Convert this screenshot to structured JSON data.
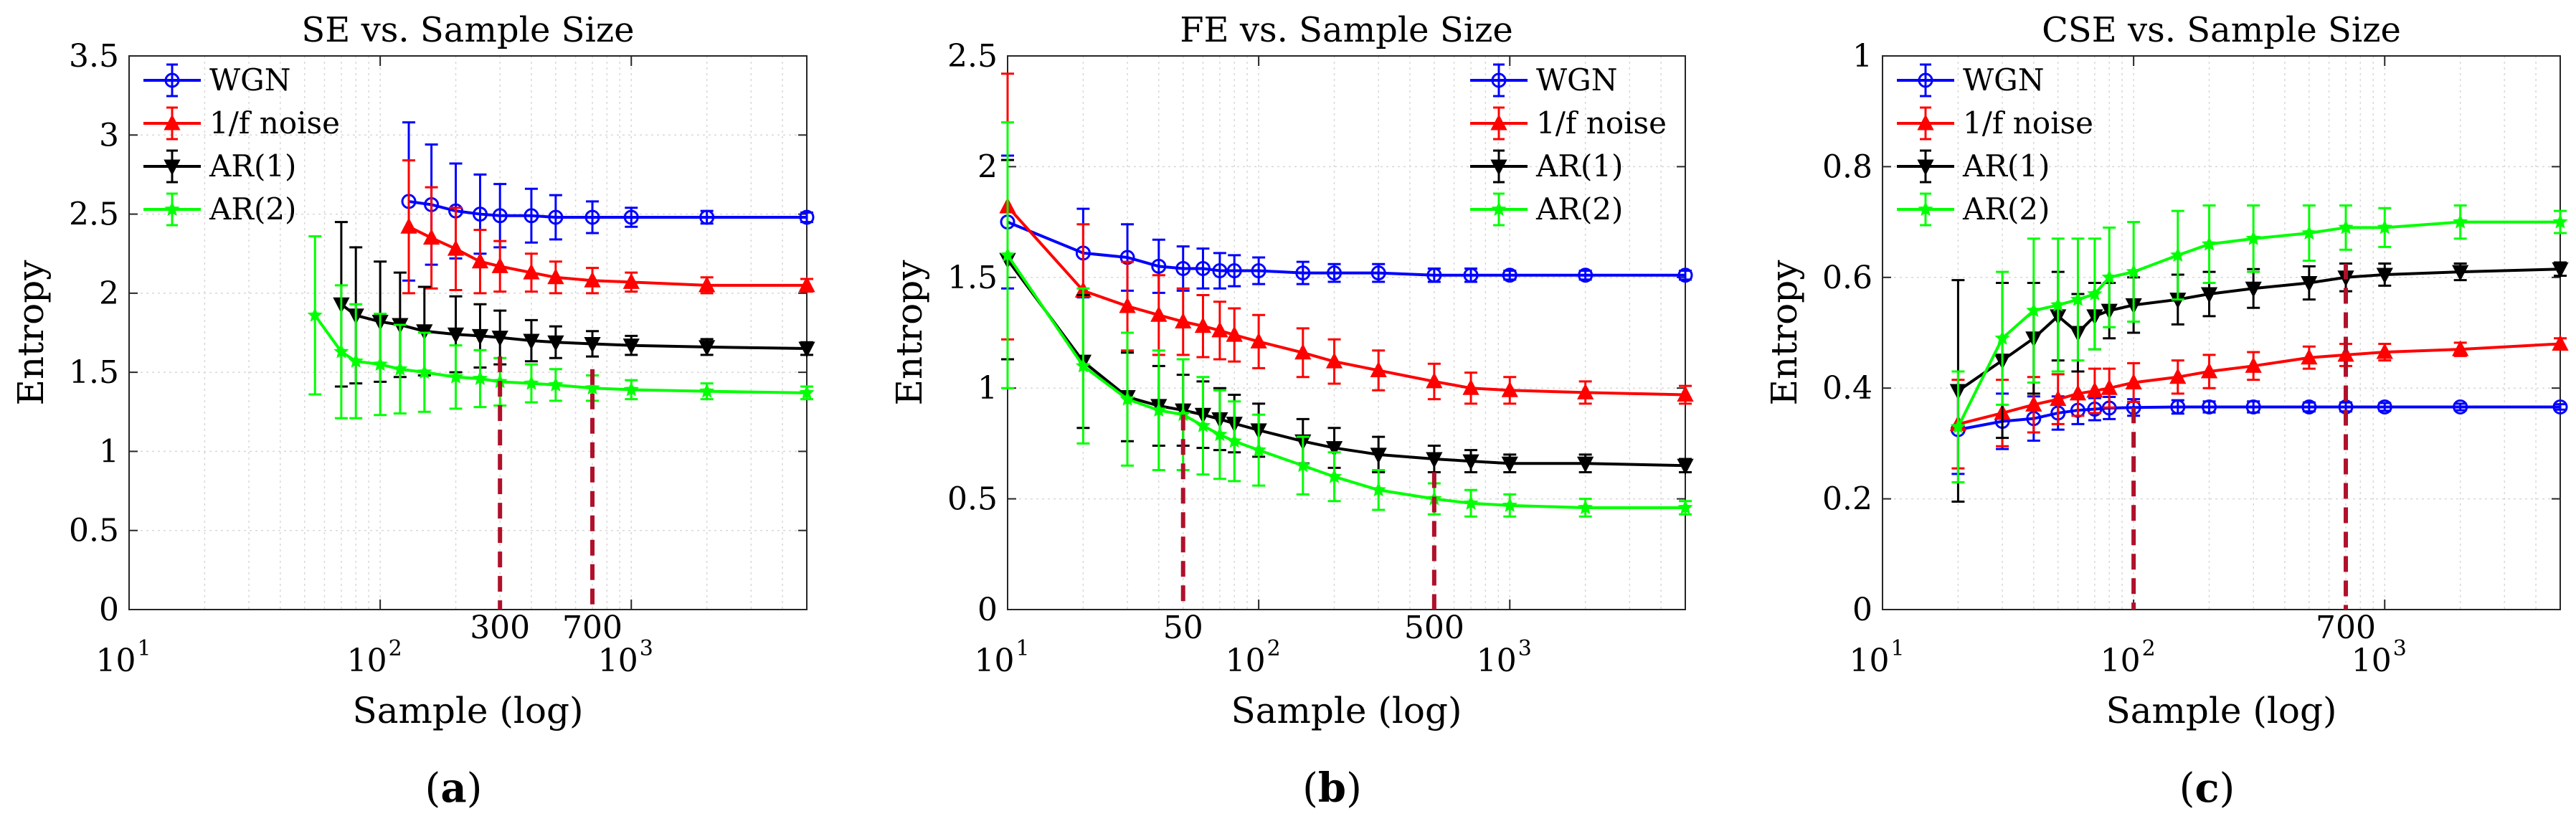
{
  "chart_data": [
    {
      "type": "line",
      "panel": "(a)",
      "caption": {
        "open": "(",
        "letter": "a",
        "close": ")"
      },
      "title": "SE vs. Sample Size",
      "xlabel": "Sample (log)",
      "ylabel": "Entropy",
      "xscale": "log",
      "xlim": [
        10,
        5000
      ],
      "ylim": [
        0,
        3.5
      ],
      "yticks": [
        0,
        0.5,
        1,
        1.5,
        2,
        2.5,
        3,
        3.5
      ],
      "ytick_labels": [
        "0",
        "0.5",
        "1",
        "1.5",
        "2",
        "2.5",
        "3",
        "3.5"
      ],
      "xticks": [
        {
          "value": 10,
          "base": "10",
          "exp": "1"
        },
        {
          "value": 100,
          "base": "10",
          "exp": "2"
        },
        {
          "value": 1000,
          "base": "10",
          "exp": "3"
        }
      ],
      "markers": [
        {
          "x": 300,
          "label": "300",
          "top": 1.6
        },
        {
          "x": 700,
          "label": "700",
          "top": 1.52
        }
      ],
      "legend_position": "top-left",
      "series": [
        {
          "name": "WGN",
          "color": "#0000ff",
          "marker": "circle",
          "x": [
            130,
            160,
            200,
            250,
            300,
            400,
            500,
            700,
            1000,
            2000,
            5000
          ],
          "y": [
            2.58,
            2.56,
            2.52,
            2.5,
            2.49,
            2.49,
            2.48,
            2.48,
            2.48,
            2.48,
            2.48
          ],
          "err": [
            0.5,
            0.38,
            0.3,
            0.25,
            0.2,
            0.17,
            0.14,
            0.1,
            0.06,
            0.04,
            0.03
          ]
        },
        {
          "name": "1/f noise",
          "color": "#ff0000",
          "marker": "triangle-up",
          "x": [
            130,
            160,
            200,
            250,
            300,
            400,
            500,
            700,
            1000,
            2000,
            5000
          ],
          "y": [
            2.42,
            2.35,
            2.28,
            2.2,
            2.17,
            2.13,
            2.1,
            2.08,
            2.07,
            2.05,
            2.05
          ],
          "err": [
            0.42,
            0.32,
            0.26,
            0.2,
            0.16,
            0.12,
            0.1,
            0.08,
            0.06,
            0.05,
            0.04
          ]
        },
        {
          "name": "AR(1)",
          "color": "#000000",
          "marker": "triangle-down",
          "x": [
            70,
            80,
            100,
            120,
            150,
            200,
            250,
            300,
            400,
            500,
            700,
            1000,
            2000,
            5000
          ],
          "y": [
            1.93,
            1.86,
            1.82,
            1.8,
            1.76,
            1.74,
            1.73,
            1.72,
            1.7,
            1.69,
            1.68,
            1.67,
            1.66,
            1.65
          ],
          "err": [
            0.52,
            0.43,
            0.38,
            0.33,
            0.28,
            0.24,
            0.2,
            0.17,
            0.13,
            0.1,
            0.08,
            0.06,
            0.05,
            0.04
          ]
        },
        {
          "name": "AR(2)",
          "color": "#00ff00",
          "marker": "star",
          "x": [
            55,
            70,
            80,
            100,
            120,
            150,
            200,
            250,
            300,
            400,
            500,
            700,
            1000,
            2000,
            5000
          ],
          "y": [
            1.86,
            1.63,
            1.57,
            1.55,
            1.52,
            1.5,
            1.47,
            1.46,
            1.44,
            1.43,
            1.42,
            1.4,
            1.39,
            1.38,
            1.37
          ],
          "err": [
            0.5,
            0.42,
            0.36,
            0.32,
            0.28,
            0.25,
            0.2,
            0.18,
            0.15,
            0.12,
            0.1,
            0.08,
            0.06,
            0.05,
            0.04
          ]
        }
      ]
    },
    {
      "type": "line",
      "panel": "(b)",
      "caption": {
        "open": "(",
        "letter": "b",
        "close": ")"
      },
      "title": "FE vs. Sample Size",
      "xlabel": "Sample (log)",
      "ylabel": "Entropy",
      "xscale": "log",
      "xlim": [
        10,
        5000
      ],
      "ylim": [
        0,
        2.5
      ],
      "yticks": [
        0,
        0.5,
        1,
        1.5,
        2,
        2.5
      ],
      "ytick_labels": [
        "0",
        "0.5",
        "1",
        "1.5",
        "2",
        "2.5"
      ],
      "xticks": [
        {
          "value": 10,
          "base": "10",
          "exp": "1"
        },
        {
          "value": 100,
          "base": "10",
          "exp": "2"
        },
        {
          "value": 1000,
          "base": "10",
          "exp": "3"
        }
      ],
      "markers": [
        {
          "x": 50,
          "label": "50",
          "top": 0.88
        },
        {
          "x": 500,
          "label": "500",
          "top": 0.62
        }
      ],
      "legend_position": "top-right",
      "series": [
        {
          "name": "WGN",
          "color": "#0000ff",
          "marker": "circle",
          "x": [
            10,
            20,
            30,
            40,
            50,
            60,
            70,
            80,
            100,
            150,
            200,
            300,
            500,
            700,
            1000,
            2000,
            5000
          ],
          "y": [
            1.75,
            1.61,
            1.59,
            1.55,
            1.54,
            1.54,
            1.53,
            1.53,
            1.53,
            1.52,
            1.52,
            1.52,
            1.51,
            1.51,
            1.51,
            1.51,
            1.51
          ],
          "err": [
            0.3,
            0.2,
            0.15,
            0.12,
            0.1,
            0.09,
            0.08,
            0.07,
            0.06,
            0.05,
            0.04,
            0.04,
            0.03,
            0.03,
            0.02,
            0.02,
            0.02
          ]
        },
        {
          "name": "1/f noise",
          "color": "#ff0000",
          "marker": "triangle-up",
          "x": [
            10,
            20,
            30,
            40,
            50,
            60,
            70,
            80,
            100,
            150,
            200,
            300,
            500,
            700,
            1000,
            2000,
            5000
          ],
          "y": [
            1.82,
            1.44,
            1.37,
            1.33,
            1.3,
            1.28,
            1.26,
            1.24,
            1.21,
            1.16,
            1.12,
            1.08,
            1.03,
            1.0,
            0.99,
            0.98,
            0.97
          ],
          "err": [
            0.6,
            0.3,
            0.2,
            0.18,
            0.15,
            0.14,
            0.13,
            0.12,
            0.12,
            0.11,
            0.1,
            0.09,
            0.08,
            0.07,
            0.06,
            0.05,
            0.04
          ]
        },
        {
          "name": "AR(1)",
          "color": "#000000",
          "marker": "triangle-down",
          "x": [
            10,
            20,
            30,
            40,
            50,
            60,
            70,
            80,
            100,
            150,
            200,
            300,
            500,
            700,
            1000,
            2000,
            5000
          ],
          "y": [
            1.58,
            1.12,
            0.96,
            0.92,
            0.9,
            0.88,
            0.86,
            0.84,
            0.81,
            0.76,
            0.73,
            0.7,
            0.68,
            0.67,
            0.66,
            0.66,
            0.65
          ],
          "err": [
            0.45,
            0.3,
            0.2,
            0.18,
            0.16,
            0.15,
            0.14,
            0.13,
            0.12,
            0.1,
            0.09,
            0.08,
            0.06,
            0.05,
            0.04,
            0.04,
            0.03
          ]
        },
        {
          "name": "AR(2)",
          "color": "#00ff00",
          "marker": "star",
          "x": [
            10,
            20,
            30,
            40,
            50,
            60,
            70,
            80,
            100,
            150,
            200,
            300,
            500,
            700,
            1000,
            2000,
            5000
          ],
          "y": [
            1.6,
            1.1,
            0.95,
            0.9,
            0.88,
            0.83,
            0.79,
            0.76,
            0.72,
            0.65,
            0.6,
            0.54,
            0.5,
            0.48,
            0.47,
            0.46,
            0.46
          ],
          "err": [
            0.6,
            0.35,
            0.3,
            0.27,
            0.25,
            0.22,
            0.2,
            0.18,
            0.16,
            0.13,
            0.11,
            0.09,
            0.07,
            0.06,
            0.05,
            0.04,
            0.03
          ]
        }
      ]
    },
    {
      "type": "line",
      "panel": "(c)",
      "caption": {
        "open": "(",
        "letter": "c",
        "close": ")"
      },
      "title": "CSE vs. Sample Size",
      "xlabel": "Sample (log)",
      "ylabel": "Entropy",
      "xscale": "log",
      "xlim": [
        10,
        5000
      ],
      "ylim": [
        0,
        1
      ],
      "yticks": [
        0,
        0.2,
        0.4,
        0.6,
        0.8,
        1
      ],
      "ytick_labels": [
        "0",
        "0.2",
        "0.4",
        "0.6",
        "0.8",
        "1"
      ],
      "xticks": [
        {
          "value": 10,
          "base": "10",
          "exp": "1"
        },
        {
          "value": 100,
          "base": "10",
          "exp": "2"
        },
        {
          "value": 1000,
          "base": "10",
          "exp": "3"
        }
      ],
      "markers": [
        {
          "x": 100,
          "label": "",
          "top": 0.365
        },
        {
          "x": 700,
          "label": "700",
          "top": 0.625
        }
      ],
      "legend_position": "top-left",
      "series": [
        {
          "name": "WGN",
          "color": "#0000ff",
          "marker": "circle",
          "x": [
            20,
            30,
            40,
            50,
            60,
            70,
            80,
            100,
            150,
            200,
            300,
            500,
            700,
            1000,
            2000,
            5000
          ],
          "y": [
            0.325,
            0.34,
            0.345,
            0.355,
            0.36,
            0.362,
            0.364,
            0.365,
            0.366,
            0.366,
            0.366,
            0.366,
            0.366,
            0.366,
            0.366,
            0.366
          ],
          "err": [
            0.08,
            0.05,
            0.04,
            0.03,
            0.025,
            0.02,
            0.02,
            0.015,
            0.012,
            0.01,
            0.01,
            0.008,
            0.008,
            0.007,
            0.006,
            0.005
          ]
        },
        {
          "name": "1/f noise",
          "color": "#ff0000",
          "marker": "triangle-up",
          "x": [
            20,
            30,
            40,
            50,
            60,
            70,
            80,
            100,
            150,
            200,
            300,
            500,
            700,
            1000,
            2000,
            5000
          ],
          "y": [
            0.335,
            0.355,
            0.37,
            0.38,
            0.39,
            0.395,
            0.4,
            0.41,
            0.42,
            0.43,
            0.44,
            0.455,
            0.46,
            0.465,
            0.47,
            0.48
          ],
          "err": [
            0.08,
            0.06,
            0.05,
            0.045,
            0.04,
            0.04,
            0.035,
            0.035,
            0.03,
            0.03,
            0.025,
            0.02,
            0.02,
            0.015,
            0.012,
            0.01
          ]
        },
        {
          "name": "AR(1)",
          "color": "#000000",
          "marker": "triangle-down",
          "x": [
            20,
            30,
            40,
            50,
            60,
            70,
            80,
            100,
            150,
            200,
            300,
            500,
            700,
            1000,
            2000,
            5000
          ],
          "y": [
            0.395,
            0.45,
            0.49,
            0.53,
            0.5,
            0.53,
            0.54,
            0.55,
            0.56,
            0.57,
            0.58,
            0.59,
            0.6,
            0.605,
            0.61,
            0.615
          ],
          "err": [
            0.2,
            0.14,
            0.1,
            0.08,
            0.07,
            0.06,
            0.05,
            0.05,
            0.045,
            0.04,
            0.035,
            0.03,
            0.025,
            0.02,
            0.015,
            0.012
          ]
        },
        {
          "name": "AR(2)",
          "color": "#00ff00",
          "marker": "star",
          "x": [
            20,
            30,
            40,
            50,
            60,
            70,
            80,
            100,
            150,
            200,
            300,
            500,
            700,
            1000,
            2000,
            5000
          ],
          "y": [
            0.33,
            0.49,
            0.54,
            0.55,
            0.56,
            0.57,
            0.6,
            0.61,
            0.64,
            0.66,
            0.67,
            0.68,
            0.69,
            0.69,
            0.7,
            0.7
          ],
          "err": [
            0.1,
            0.12,
            0.13,
            0.12,
            0.11,
            0.1,
            0.09,
            0.09,
            0.08,
            0.07,
            0.06,
            0.05,
            0.04,
            0.035,
            0.03,
            0.02
          ]
        }
      ]
    }
  ]
}
